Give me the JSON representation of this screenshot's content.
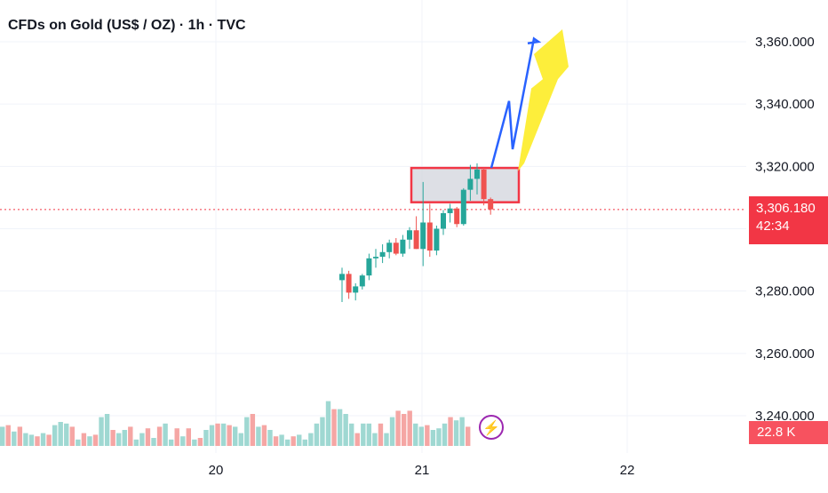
{
  "title": "CFDs on Gold (US$ / OZ) · 1h · TVC",
  "current_price": "3,306.180",
  "countdown": "42:34",
  "volume_label": "22.8 K",
  "colors": {
    "up": "#26a69a",
    "down": "#ef5350",
    "vol_up": "#9fd8d2",
    "vol_down": "#f5a6a4",
    "zone_fill": "#d1d4dc",
    "zone_border": "#f23645",
    "arrow_blue": "#2962ff",
    "arrow_yellow": "#fdee3b"
  },
  "icons": {
    "flash": "lightning-bolt-icon"
  },
  "chart_data": {
    "type": "candlestick",
    "title": "CFDs on Gold (US$ / OZ) · 1h · TVC",
    "y_axis": {
      "ticks": [
        "3,240.000",
        "3,260.000",
        "3,280.000",
        "3,300.000",
        "3,320.000",
        "3,340.000",
        "3,360.000"
      ],
      "tick_values": [
        3240,
        3260,
        3280,
        3300,
        3320,
        3340,
        3360
      ],
      "range": [
        3229,
        3377
      ],
      "position": "right"
    },
    "x_axis": {
      "ticks": [
        "20",
        "21",
        "22"
      ]
    },
    "grid": true,
    "current_price": 3306.18,
    "candles": [
      {
        "o": 3283.5,
        "h": 3287.5,
        "l": 3276.5,
        "c": 3285.5
      },
      {
        "o": 3285.5,
        "h": 3286.5,
        "l": 3277.5,
        "c": 3279.5
      },
      {
        "o": 3279.5,
        "h": 3282.5,
        "l": 3277.0,
        "c": 3281.5
      },
      {
        "o": 3281.5,
        "h": 3285.5,
        "l": 3280.5,
        "c": 3285.0
      },
      {
        "o": 3285.0,
        "h": 3292.0,
        "l": 3283.5,
        "c": 3290.5
      },
      {
        "o": 3290.5,
        "h": 3293.5,
        "l": 3287.5,
        "c": 3291.0
      },
      {
        "o": 3291.0,
        "h": 3295.0,
        "l": 3289.0,
        "c": 3292.5
      },
      {
        "o": 3292.5,
        "h": 3296.5,
        "l": 3290.5,
        "c": 3295.5
      },
      {
        "o": 3295.5,
        "h": 3297.0,
        "l": 3291.5,
        "c": 3292.0
      },
      {
        "o": 3292.0,
        "h": 3298.0,
        "l": 3291.0,
        "c": 3296.5
      },
      {
        "o": 3296.5,
        "h": 3300.5,
        "l": 3293.5,
        "c": 3299.5
      },
      {
        "o": 3299.5,
        "h": 3304.0,
        "l": 3293.5,
        "c": 3293.5
      },
      {
        "o": 3293.5,
        "h": 3315.0,
        "l": 3288.0,
        "c": 3302.0
      },
      {
        "o": 3302.0,
        "h": 3308.0,
        "l": 3291.0,
        "c": 3293.0
      },
      {
        "o": 3293.0,
        "h": 3301.0,
        "l": 3291.5,
        "c": 3300.0
      },
      {
        "o": 3300.0,
        "h": 3306.0,
        "l": 3298.0,
        "c": 3305.0
      },
      {
        "o": 3305.0,
        "h": 3308.0,
        "l": 3302.0,
        "c": 3306.5
      },
      {
        "o": 3306.5,
        "h": 3307.0,
        "l": 3300.5,
        "c": 3301.5
      },
      {
        "o": 3301.5,
        "h": 3313.0,
        "l": 3301.0,
        "c": 3312.5
      },
      {
        "o": 3312.5,
        "h": 3320.5,
        "l": 3309.0,
        "c": 3316.0
      },
      {
        "o": 3316.0,
        "h": 3321.0,
        "l": 3311.0,
        "c": 3319.0
      },
      {
        "o": 3319.0,
        "h": 3319.5,
        "l": 3307.5,
        "c": 3309.5
      },
      {
        "o": 3309.5,
        "h": 3310.0,
        "l": 3304.5,
        "c": 3306.2
      }
    ],
    "volume": {
      "values": [
        6,
        6.5,
        4.5,
        6,
        4,
        3.5,
        3,
        4,
        3.5,
        6.5,
        7.5,
        7,
        6,
        2,
        4,
        3,
        3.5,
        9,
        10,
        5,
        4,
        5,
        6,
        2,
        4,
        5.5,
        2.5,
        6,
        7,
        2,
        5.5,
        3,
        5.5,
        2,
        2.5,
        5,
        6.5,
        7,
        7,
        6.5,
        6,
        4,
        9,
        10,
        6,
        6.5,
        5,
        3,
        3.5,
        2,
        3,
        3.5,
        2,
        4,
        7,
        9,
        14,
        11.5,
        11.5,
        10,
        7,
        4,
        7,
        7,
        4,
        7,
        4,
        9,
        11,
        10,
        11,
        7,
        6,
        6.5,
        5,
        5.5,
        7,
        9,
        8,
        9,
        6
      ],
      "up": [
        true,
        false,
        true,
        false,
        true,
        true,
        false,
        true,
        false,
        true,
        true,
        true,
        false,
        true,
        false,
        true,
        false,
        true,
        true,
        false,
        true,
        true,
        false,
        true,
        true,
        false,
        true,
        false,
        true,
        true,
        false,
        true,
        false,
        true,
        false,
        true,
        true,
        false,
        true,
        false,
        true,
        true,
        true,
        false,
        true,
        false,
        true,
        false,
        true,
        true,
        false,
        true,
        true,
        true,
        true,
        true,
        true,
        false,
        true,
        true,
        true,
        false,
        true,
        true,
        true,
        false,
        true,
        true,
        false,
        false,
        false,
        true,
        true,
        false,
        true,
        true,
        true,
        false,
        true,
        true,
        false
      ],
      "range_max": 30
    },
    "zone": {
      "x_start_index": 13,
      "x_end_index": 23,
      "y_low": 3308.5,
      "y_high": 3319.5
    },
    "projection_blue": [
      [
        3311.5,
        3319.5
      ],
      [
        3313.0,
        3341.0
      ],
      [
        3313.5,
        3325.5
      ],
      [
        3315.0,
        3361.0
      ],
      [
        3316.5,
        3360.0
      ]
    ],
    "projection_yellow": {
      "tail": [
        3313.0,
        3313.0
      ],
      "head": [
        3318.5,
        3358.5
      ]
    }
  }
}
